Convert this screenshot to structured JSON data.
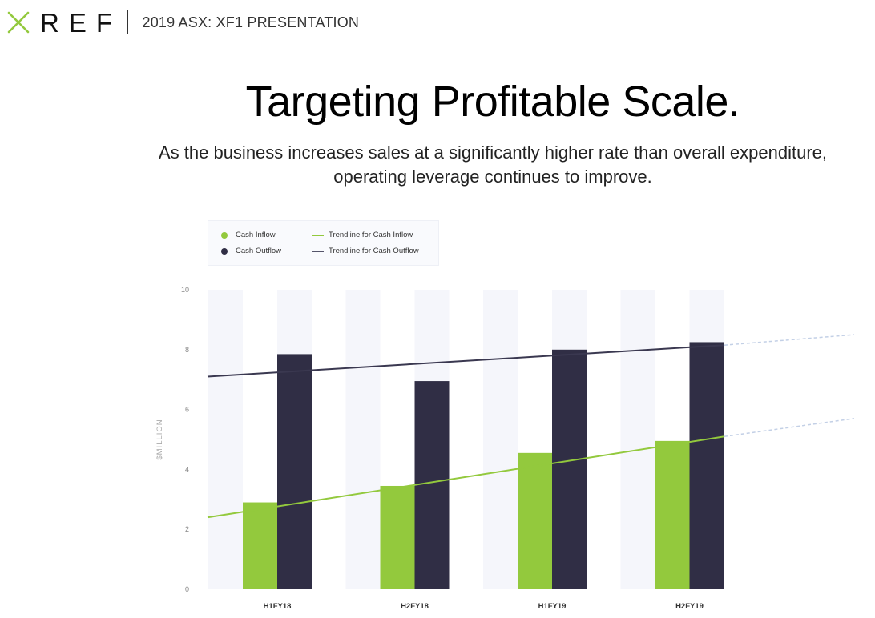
{
  "header": {
    "logo_text": "REF",
    "title": "2019 ASX: XF1 PRESENTATION"
  },
  "page": {
    "title": "Targeting Profitable Scale.",
    "subtitle_line1": "As the business increases sales at a significantly higher rate than overall expenditure,",
    "subtitle_line2": "operating leverage continues to improve."
  },
  "colors": {
    "inflow": "#93c93d",
    "outflow": "#302e45",
    "column_band": "#f5f6fb",
    "projection": "#c3d0e6"
  },
  "legend": {
    "items": [
      "Cash Inflow",
      "Cash Outflow",
      "Trendline for Cash Inflow",
      "Trendline for Cash Outflow"
    ]
  },
  "chart_data": {
    "type": "bar",
    "title": "",
    "xlabel": "",
    "ylabel": "$MILLION",
    "ylim": [
      0,
      10
    ],
    "yticks": [
      "0",
      "2",
      "4",
      "6",
      "8",
      "10"
    ],
    "categories": [
      "H1FY18",
      "H2FY18",
      "H1FY19",
      "H2FY19"
    ],
    "series": [
      {
        "name": "Cash Inflow",
        "values": [
          2.9,
          3.45,
          4.55,
          4.95
        ]
      },
      {
        "name": "Cash Outflow",
        "values": [
          7.85,
          6.95,
          8.0,
          8.25
        ]
      }
    ],
    "trendlines": [
      {
        "name": "Trendline for Cash Inflow",
        "start": 2.4,
        "end": 5.1,
        "projected_end": 5.7
      },
      {
        "name": "Trendline for Cash Outflow",
        "start": 7.1,
        "end": 8.15,
        "projected_end": 8.5
      }
    ],
    "legend_position": "top-left",
    "grid": false
  }
}
